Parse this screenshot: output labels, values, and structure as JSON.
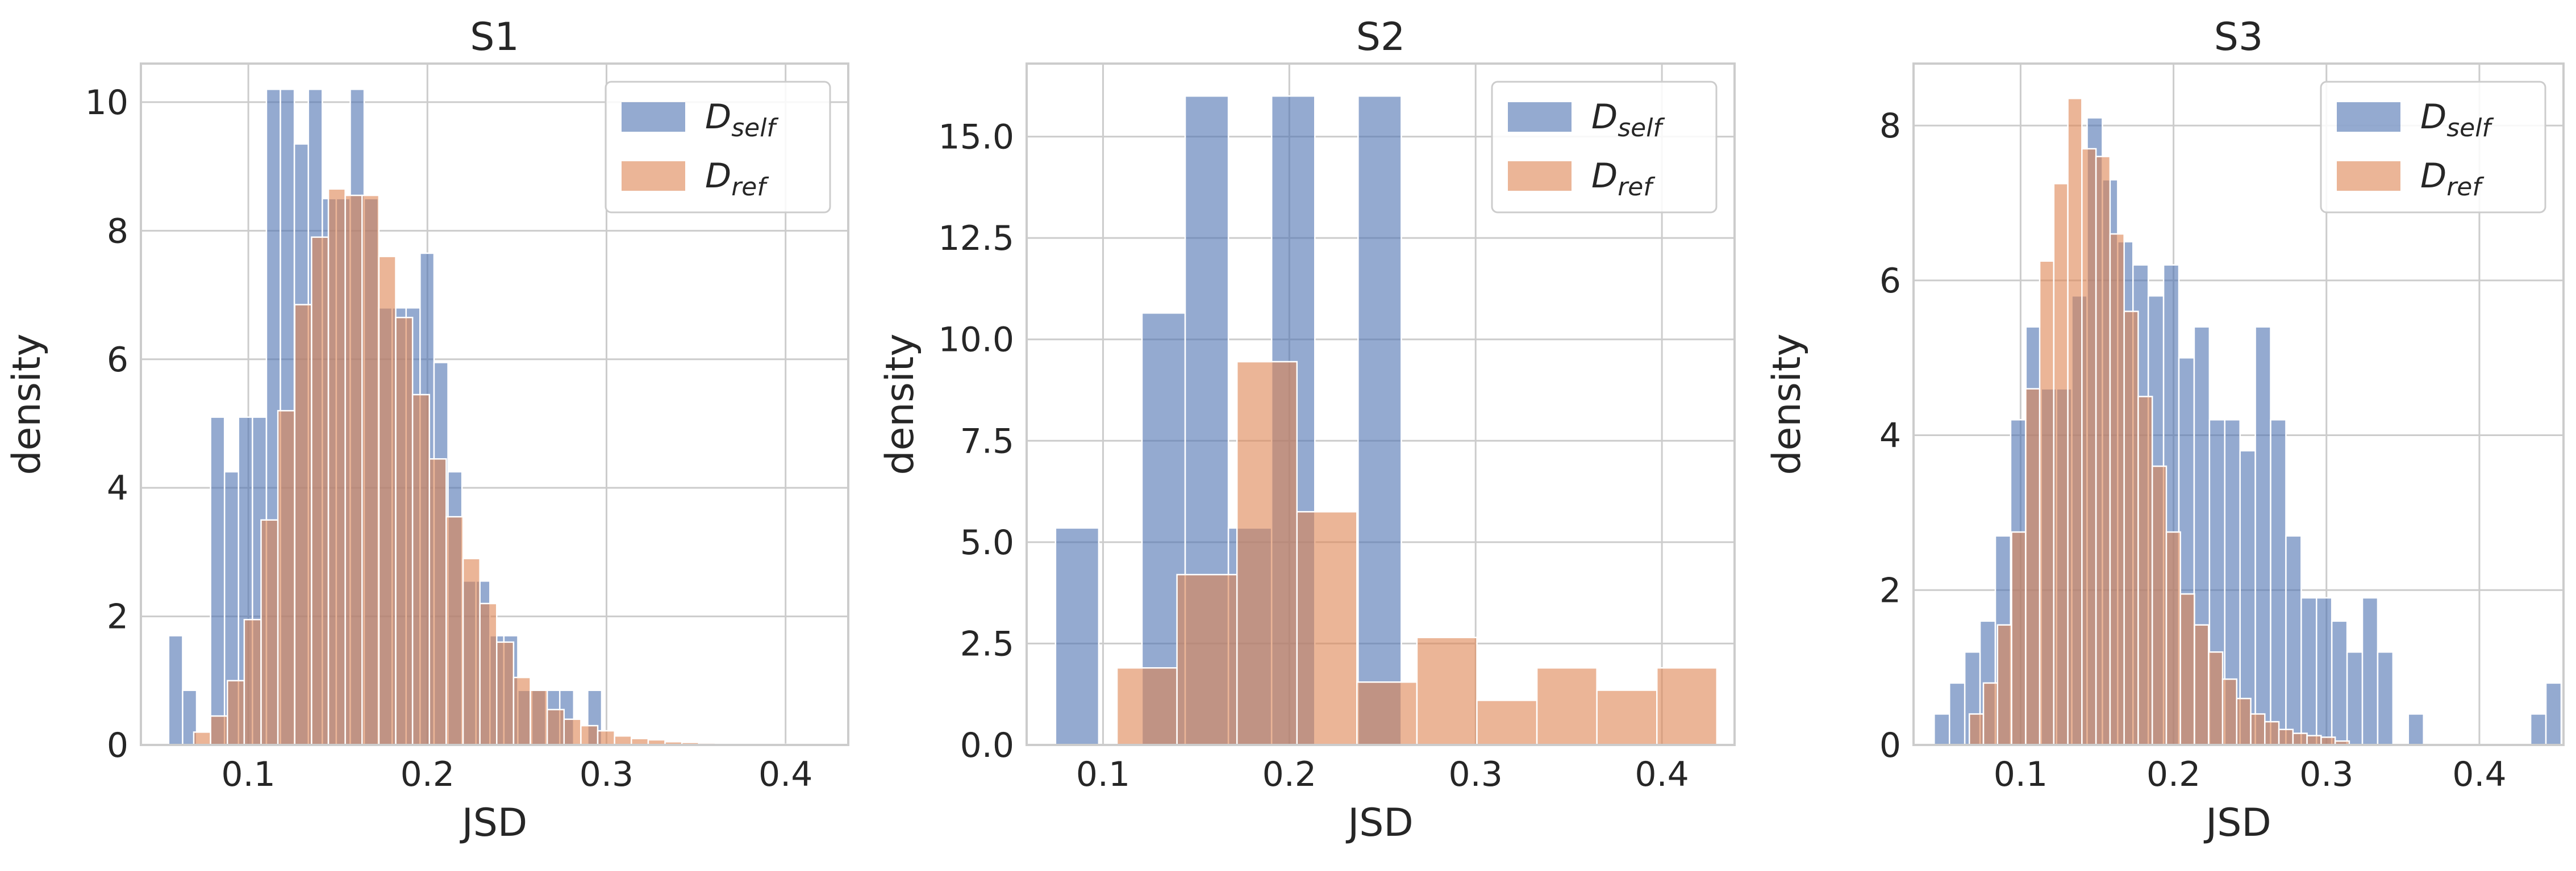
{
  "colors": {
    "self": "#4c72b0",
    "ref": "#dd8452",
    "grid": "#cccccc",
    "frame": "#cccccc",
    "text": "#262626"
  },
  "chart_data": [
    {
      "type": "histogram",
      "title": "S1",
      "xlabel": "JSD",
      "ylabel": "density",
      "xlim": [
        0.04,
        0.435
      ],
      "ylim": [
        0,
        10.6
      ],
      "xticks": [
        0.1,
        0.2,
        0.3,
        0.4
      ],
      "xtick_labels": [
        "0.1",
        "0.2",
        "0.3",
        "0.4"
      ],
      "yticks": [
        0,
        2,
        4,
        6,
        8,
        10
      ],
      "ytick_labels": [
        "0",
        "2",
        "4",
        "6",
        "8",
        "10"
      ],
      "grid": true,
      "legend": {
        "position": "top-right",
        "entries": [
          {
            "base": "D",
            "sub": "self"
          },
          {
            "base": "D",
            "sub": "ref"
          }
        ]
      },
      "series": [
        {
          "name": "D_self",
          "color": "#4c72b0",
          "alpha": 0.6,
          "bin_start": 0.0555,
          "bin_width": 0.0078,
          "values": [
            1.7,
            0.85,
            0,
            5.1,
            4.25,
            5.1,
            5.1,
            10.2,
            10.2,
            9.35,
            10.2,
            8.5,
            8.5,
            10.2,
            8.5,
            6.8,
            6.8,
            6.8,
            7.65,
            5.95,
            4.25,
            2.55,
            2.55,
            1.7,
            1.7,
            0.85,
            0.85,
            0.85,
            0.85,
            0,
            0.85
          ]
        },
        {
          "name": "D_ref",
          "color": "#dd8452",
          "alpha": 0.6,
          "bin_start": 0.0695,
          "bin_width": 0.0094,
          "values": [
            0.2,
            0.45,
            1.0,
            1.95,
            3.5,
            5.2,
            6.85,
            7.9,
            8.65,
            8.55,
            8.55,
            7.6,
            6.65,
            5.45,
            4.45,
            3.55,
            2.9,
            2.2,
            1.6,
            1.05,
            0.85,
            0.55,
            0.4,
            0.3,
            0.22,
            0.14,
            0.1,
            0.08,
            0.05,
            0.04,
            0.03,
            0.02,
            0.01,
            0.01,
            0.01,
            0.01,
            0.01,
            0.01
          ]
        }
      ]
    },
    {
      "type": "histogram",
      "title": "S2",
      "xlabel": "JSD",
      "ylabel": "density",
      "xlim": [
        0.059,
        0.439
      ],
      "ylim": [
        0,
        16.8
      ],
      "xticks": [
        0.1,
        0.2,
        0.3,
        0.4
      ],
      "xtick_labels": [
        "0.1",
        "0.2",
        "0.3",
        "0.4"
      ],
      "yticks": [
        0,
        2.5,
        5,
        7.5,
        10,
        12.5,
        15
      ],
      "ytick_labels": [
        "0.0",
        "2.5",
        "5.0",
        "7.5",
        "10.0",
        "12.5",
        "15.0"
      ],
      "grid": true,
      "legend": {
        "position": "top-right",
        "entries": [
          {
            "base": "D",
            "sub": "self"
          },
          {
            "base": "D",
            "sub": "ref"
          }
        ]
      },
      "series": [
        {
          "name": "D_self",
          "color": "#4c72b0",
          "alpha": 0.6,
          "bin_start": 0.0745,
          "bin_width": 0.0232,
          "values": [
            5.35,
            0,
            10.65,
            16.0,
            5.35,
            16.0,
            0,
            16.0
          ]
        },
        {
          "name": "D_ref",
          "color": "#dd8452",
          "alpha": 0.6,
          "bin_start": 0.1075,
          "bin_width": 0.0322,
          "values": [
            1.9,
            4.2,
            9.45,
            5.75,
            1.55,
            2.65,
            1.1,
            1.9,
            1.35,
            1.9
          ]
        }
      ]
    },
    {
      "type": "histogram",
      "title": "S3",
      "xlabel": "JSD",
      "ylabel": "density",
      "xlim": [
        0.03,
        0.455
      ],
      "ylim": [
        0,
        8.8
      ],
      "xticks": [
        0.1,
        0.2,
        0.3,
        0.4
      ],
      "xtick_labels": [
        "0.1",
        "0.2",
        "0.3",
        "0.4"
      ],
      "yticks": [
        0,
        2,
        4,
        6,
        8
      ],
      "ytick_labels": [
        "0",
        "2",
        "4",
        "6",
        "8"
      ],
      "grid": true,
      "legend": {
        "position": "top-right",
        "entries": [
          {
            "base": "D",
            "sub": "self"
          },
          {
            "base": "D",
            "sub": "ref"
          }
        ]
      },
      "series": [
        {
          "name": "D_self",
          "color": "#4c72b0",
          "alpha": 0.6,
          "bin_start": 0.0435,
          "bin_width": 0.01,
          "values": [
            0.4,
            0.8,
            1.2,
            1.6,
            2.7,
            4.2,
            5.4,
            4.6,
            4.6,
            5.8,
            8.1,
            7.3,
            6.5,
            6.2,
            5.8,
            6.2,
            5.0,
            5.4,
            4.2,
            4.2,
            3.8,
            5.4,
            4.2,
            2.7,
            1.9,
            1.9,
            1.6,
            1.2,
            1.9,
            1.2,
            0,
            0.4,
            0,
            0,
            0,
            0,
            0,
            0,
            0,
            0.4,
            0.8
          ]
        },
        {
          "name": "D_ref",
          "color": "#dd8452",
          "alpha": 0.6,
          "bin_start": 0.0665,
          "bin_width": 0.0092,
          "values": [
            0.4,
            0.8,
            1.55,
            2.75,
            4.6,
            6.25,
            7.25,
            8.35,
            7.7,
            7.6,
            6.6,
            5.6,
            4.5,
            3.6,
            2.75,
            1.95,
            1.55,
            1.2,
            0.85,
            0.6,
            0.4,
            0.3,
            0.2,
            0.15,
            0.12,
            0.1,
            0.05
          ]
        }
      ]
    }
  ]
}
